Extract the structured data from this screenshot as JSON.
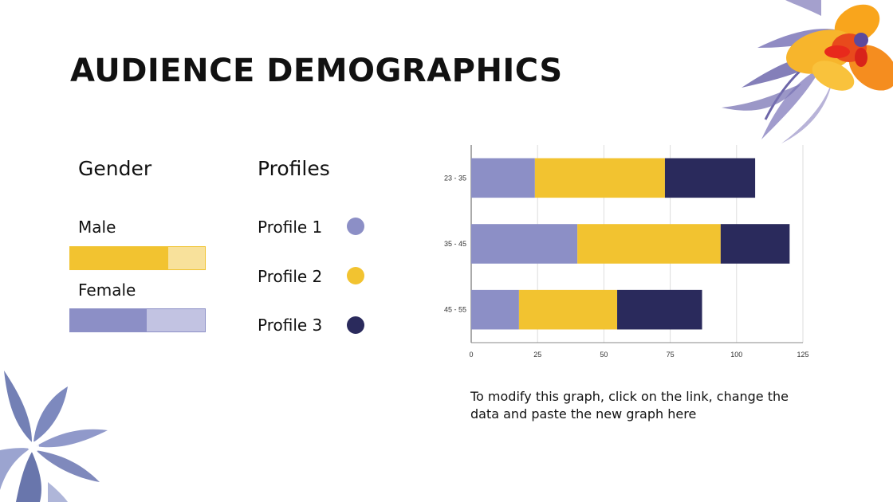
{
  "slide": {
    "title": "AUDIENCE DEMOGRAPHICS",
    "footnote": "To modify this graph, click on the link, change the data and paste the new graph here"
  },
  "gender": {
    "heading": "Gender",
    "male_label": "Male",
    "male_share": 0.73,
    "male_color": "#f2c330",
    "male_light": "#f8e19b",
    "female_label": "Female",
    "female_share": 0.57,
    "female_color": "#8c8fc6",
    "female_light": "#c2c3e2"
  },
  "profiles": {
    "heading": "Profiles",
    "items": [
      {
        "label": "Profile 1",
        "color": "#8c8fc6"
      },
      {
        "label": "Profile 2",
        "color": "#f2c330"
      },
      {
        "label": "Profile 3",
        "color": "#2a2a5c"
      }
    ]
  },
  "chart_data": {
    "type": "bar",
    "orientation": "horizontal",
    "stacked": true,
    "categories": [
      "23 - 35",
      "35 - 45",
      "45 - 55"
    ],
    "series": [
      {
        "name": "Profile 1",
        "color": "#8c8fc6",
        "values": [
          24,
          40,
          18
        ]
      },
      {
        "name": "Profile 2",
        "color": "#f2c330",
        "values": [
          49,
          54,
          37
        ]
      },
      {
        "name": "Profile 3",
        "color": "#2a2a5c",
        "values": [
          34,
          26,
          32
        ]
      }
    ],
    "xlim": [
      0,
      125
    ],
    "xticks": [
      0,
      25,
      50,
      75,
      100,
      125
    ],
    "xtick_labels": [
      "0",
      "25",
      "50",
      "75",
      "100",
      "125"
    ],
    "grid": true
  }
}
